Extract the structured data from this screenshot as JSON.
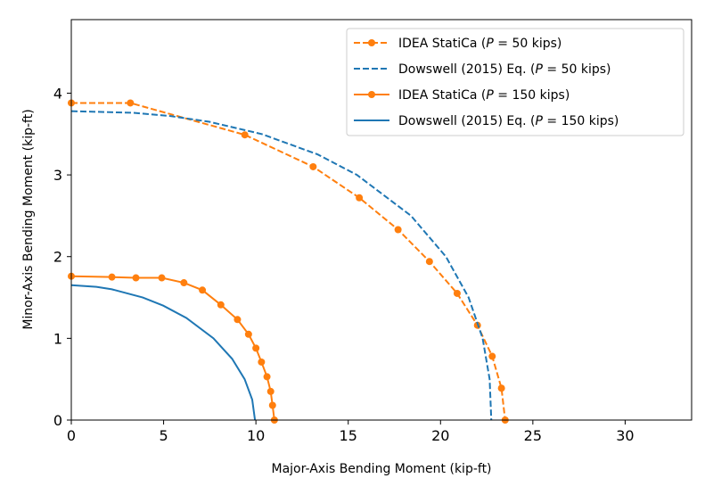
{
  "chart_data": {
    "type": "line",
    "title": "",
    "xlabel": "Major-Axis Bending Moment (kip-ft)",
    "ylabel": "Minor-Axis Bending Moment (kip-ft)",
    "xlim": [
      0,
      33.6
    ],
    "ylim": [
      0,
      4.9
    ],
    "xticks": [
      0,
      5,
      10,
      15,
      20,
      25,
      30
    ],
    "yticks": [
      0,
      1,
      2,
      3,
      4
    ],
    "grid": false,
    "legend_placement": "top-right",
    "series": [
      {
        "name": "IDEA StatiCa (P = 50 kips)",
        "label_parts": [
          "IDEA StatiCa (",
          "P",
          " = 50 kips)"
        ],
        "color": "#ff7f0e",
        "style": "dashed",
        "marker": "circle",
        "x": [
          0,
          3.2,
          9.4,
          13.1,
          15.6,
          17.7,
          19.4,
          20.9,
          22.0,
          22.8,
          23.3,
          23.5
        ],
        "y": [
          3.88,
          3.88,
          3.49,
          3.1,
          2.72,
          2.33,
          1.94,
          1.55,
          1.16,
          0.78,
          0.39,
          0
        ]
      },
      {
        "name": "Dowswell (2015) Eq. (P = 50 kips)",
        "label_parts": [
          "Dowswell (2015) Eq. (",
          "P",
          " = 50 kips)"
        ],
        "color": "#1f77b4",
        "style": "dashed",
        "marker": "none",
        "x": [
          0,
          3.34,
          5.37,
          7.47,
          10.31,
          13.35,
          15.47,
          18.4,
          20.29,
          21.52,
          22.28,
          22.66,
          22.75
        ],
        "y": [
          3.78,
          3.76,
          3.72,
          3.65,
          3.5,
          3.25,
          3.0,
          2.5,
          2.0,
          1.5,
          1.0,
          0.5,
          0
        ]
      },
      {
        "name": "IDEA StatiCa (P = 150 kips)",
        "label_parts": [
          "IDEA StatiCa (",
          "P",
          " = 150 kips)"
        ],
        "color": "#ff7f0e",
        "style": "solid",
        "marker": "circle",
        "x": [
          0,
          2.2,
          3.5,
          4.9,
          6.1,
          7.1,
          8.1,
          9.0,
          9.6,
          10.0,
          10.3,
          10.6,
          10.8,
          10.9,
          11.0
        ],
        "y": [
          1.76,
          1.75,
          1.74,
          1.74,
          1.68,
          1.59,
          1.41,
          1.23,
          1.05,
          0.88,
          0.71,
          0.53,
          0.35,
          0.18,
          0
        ]
      },
      {
        "name": "Dowswell (2015) Eq. (P = 150 kips)",
        "label_parts": [
          "Dowswell (2015) Eq. (",
          "P",
          " = 150 kips)"
        ],
        "color": "#1f77b4",
        "style": "solid",
        "marker": "none",
        "x": [
          0,
          1.36,
          2.2,
          3.87,
          4.98,
          6.23,
          7.7,
          8.71,
          9.39,
          9.8,
          9.95
        ],
        "y": [
          1.65,
          1.63,
          1.6,
          1.5,
          1.4,
          1.25,
          1.0,
          0.75,
          0.5,
          0.25,
          0
        ]
      }
    ]
  }
}
